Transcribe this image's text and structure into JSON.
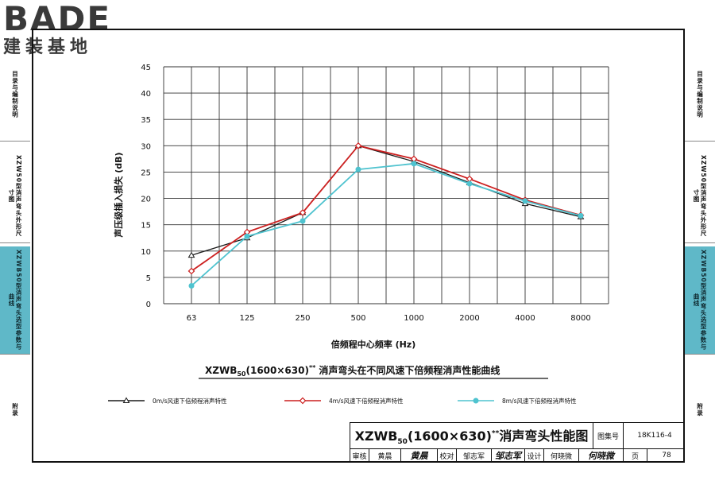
{
  "logo": {
    "brand": "BADE",
    "subtitle": "建装基地"
  },
  "sidebar_left": [
    {
      "label": "目录与编制说明",
      "active": false
    },
    {
      "label": "XZW50型消声弯头外形尺寸图",
      "active": false
    },
    {
      "label": "XZWB50型消声弯头选型参数与曲线",
      "active": true
    },
    {
      "label": "附录",
      "active": false
    }
  ],
  "sidebar_right": [
    {
      "label": "目录与编制说明",
      "active": false
    },
    {
      "label": "XZW50型消声弯头外形尺寸图",
      "active": false
    },
    {
      "label": "XZWB50型消声弯头选型参数与曲线",
      "active": true
    },
    {
      "label": "附录",
      "active": false
    }
  ],
  "chart_data": {
    "type": "line",
    "caption_main": "XZWB",
    "caption_sub": "50",
    "caption_size": "(1600×630)",
    "caption_sup": "**",
    "caption_rest": "消声弯头在不同风速下倍频程消声性能曲线",
    "xlabel": "倍频程中心频率 (Hz)",
    "ylabel": "声压级插入损失 (dB)",
    "categories": [
      "63",
      "125",
      "250",
      "500",
      "1000",
      "2000",
      "4000",
      "8000"
    ],
    "ylim": [
      0,
      45
    ],
    "yticks": [
      "0",
      "5",
      "10",
      "15",
      "20",
      "25",
      "30",
      "35",
      "40",
      "45"
    ],
    "grid": true,
    "legend_position": "bottom",
    "series": [
      {
        "name": "0m/s风速下倍频程消声特性",
        "values": [
          9.2,
          12.5,
          17.3,
          30.0,
          27.0,
          23.0,
          19.0,
          16.5
        ],
        "color": "#1a1a1a",
        "marker": "triangle"
      },
      {
        "name": "4m/s风速下倍频程消声特性",
        "values": [
          6.2,
          13.6,
          17.3,
          30.0,
          27.5,
          23.7,
          19.7,
          16.8
        ],
        "color": "#cc1f1f",
        "marker": "diamond"
      },
      {
        "name": "8m/s风速下倍频程消声特性",
        "values": [
          3.4,
          12.8,
          15.7,
          25.5,
          26.6,
          22.8,
          19.5,
          16.7
        ],
        "color": "#4fc3cf",
        "marker": "circle"
      }
    ]
  },
  "title_block": {
    "drawing_title_main": "XZWB",
    "drawing_title_sub": "50",
    "drawing_title_size": "(1600×630)",
    "drawing_title_sup": "**",
    "drawing_title_rest": "消声弯头性能图",
    "atlas_label": "图集号",
    "atlas_number": "18K116-4",
    "review_label": "审核",
    "reviewer": "黄晨",
    "reviewer_sig": "黄晨",
    "check_label": "校对",
    "checker": "邹志军",
    "checker_sig": "邹志军",
    "design_label": "设计",
    "designer": "何晓微",
    "designer_sig": "何晓微",
    "page_label": "页",
    "page_number": "78"
  }
}
